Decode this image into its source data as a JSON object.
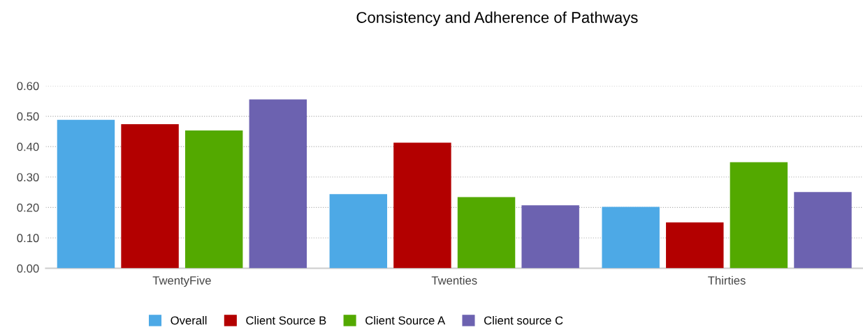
{
  "chart_data": {
    "type": "bar",
    "title": "Consistency and Adherence of Pathways",
    "categories": [
      "TwentyFive",
      "Twenties",
      "Thirties"
    ],
    "series": [
      {
        "name": "Overall",
        "color": "#4da9e6",
        "values": [
          0.488,
          0.244,
          0.202
        ]
      },
      {
        "name": "Client Source B",
        "color": "#b30000",
        "values": [
          0.474,
          0.413,
          0.151
        ]
      },
      {
        "name": "Client Source A",
        "color": "#53a900",
        "values": [
          0.453,
          0.234,
          0.349
        ]
      },
      {
        "name": "Client source C",
        "color": "#6c62b0",
        "values": [
          0.555,
          0.207,
          0.251
        ]
      }
    ],
    "ylim": [
      0,
      0.6
    ],
    "yticks": [
      {
        "value": 0,
        "label": "0.00"
      },
      {
        "value": 0.1,
        "label": "0.10"
      },
      {
        "value": 0.2,
        "label": "0.20"
      },
      {
        "value": 0.3,
        "label": "0.30"
      },
      {
        "value": 0.4,
        "label": "0.40"
      },
      {
        "value": 0.5,
        "label": "0.50"
      },
      {
        "value": 0.6,
        "label": "0.60"
      }
    ],
    "grid": "y",
    "legend": "bottom"
  }
}
